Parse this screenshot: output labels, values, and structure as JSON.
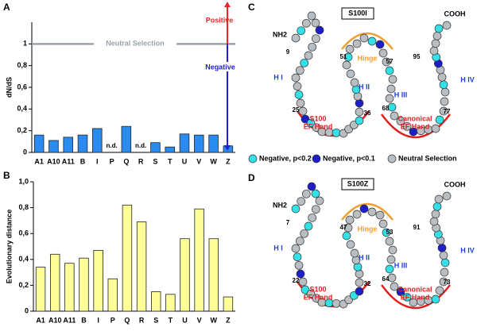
{
  "chart_data": [
    {
      "type": "bar",
      "panel": "A",
      "ylabel": "dN/dS",
      "categories": [
        "A1",
        "A10",
        "A11",
        "B",
        "I",
        "P",
        "Q",
        "R",
        "S",
        "T",
        "U",
        "V",
        "W",
        "Z"
      ],
      "values": [
        0.16,
        0.11,
        0.14,
        0.16,
        0.22,
        null,
        0.24,
        null,
        0.09,
        0.05,
        0.17,
        0.16,
        0.16,
        0.06
      ],
      "value_labels": [
        null,
        null,
        null,
        null,
        null,
        "n.d.",
        null,
        "n.d.",
        null,
        null,
        null,
        null,
        null,
        null
      ],
      "color": "#2a8cf0",
      "ylim": [
        0,
        1.2
      ],
      "yticks": [
        0,
        {
          "value": 0.2,
          "label": "0,2"
        },
        {
          "value": 0.4,
          "label": "0,4"
        },
        {
          "value": 0.6,
          "label": "0,6"
        },
        {
          "value": 0.8,
          "label": "0,8"
        },
        1
      ],
      "reference_line": {
        "value": 1,
        "label": "Neutral Selection",
        "color": "#98a4ab"
      },
      "annotations": [
        {
          "text": "Positive",
          "color": "#e8262a"
        },
        {
          "text": "Negative",
          "color": "#2020d0"
        }
      ]
    },
    {
      "type": "bar",
      "panel": "B",
      "ylabel": "Evolutionary distance",
      "categories": [
        "A1",
        "A10",
        "A11",
        "B",
        "I",
        "P",
        "Q",
        "R",
        "S",
        "T",
        "U",
        "V",
        "W",
        "Z"
      ],
      "values": [
        0.34,
        0.44,
        0.37,
        0.41,
        0.47,
        0.25,
        0.82,
        0.69,
        0.15,
        0.13,
        0.56,
        0.79,
        0.56,
        0.11
      ],
      "color": "#ffff99",
      "ylim": [
        0,
        1
      ],
      "yticks": [
        0,
        {
          "value": 0.2,
          "label": "0,2"
        },
        {
          "value": 0.4,
          "label": "0,4"
        },
        {
          "value": 0.6,
          "label": "0,6"
        },
        {
          "value": 0.8,
          "label": "0,8"
        },
        {
          "value": 1,
          "label": "1,0"
        }
      ]
    }
  ],
  "diagrams": [
    {
      "panel": "C",
      "title": "S100I",
      "labels": {
        "n_term": "NH2",
        "c_term": "COOH",
        "hinge": "Hinge",
        "h1": "H I",
        "h2": "H II",
        "h3": "H III",
        "h4": "H IV",
        "ef1": [
          "S100",
          "EF Hand"
        ],
        "ef2": [
          "Canonical",
          "EF Hand"
        ]
      },
      "residues": [
        "9",
        "51",
        "57",
        "95",
        "25",
        "36",
        "68",
        "77"
      ],
      "legend": [
        "Negative, p<0.2",
        "Negative, p<0.1",
        "Neutral Selection"
      ]
    },
    {
      "panel": "D",
      "title": "S100Z",
      "labels": {
        "n_term": "NH2",
        "c_term": "COOH",
        "hinge": "Hinge",
        "h1": "H I",
        "h2": "H II",
        "h3": "H III",
        "h4": "H IV",
        "ef1": [
          "S100",
          "EF Hand"
        ],
        "ef2": [
          "Canonical",
          "EF Hand"
        ]
      },
      "residues": [
        "7",
        "47",
        "53",
        "91",
        "22",
        "32",
        "64",
        "73"
      ]
    }
  ]
}
